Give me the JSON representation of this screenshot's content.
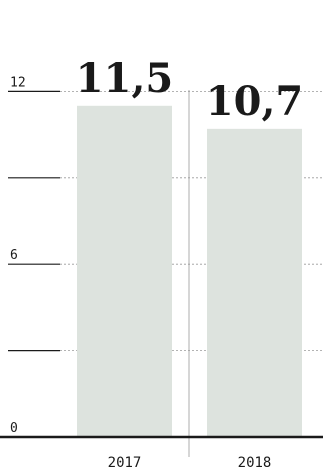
{
  "chart_data": {
    "type": "bar",
    "categories": [
      "2017",
      "2018"
    ],
    "values": [
      11.5,
      10.7
    ],
    "value_labels": [
      "11,5",
      "10,7"
    ],
    "y_ticks": [
      0,
      3,
      6,
      9,
      12
    ],
    "y_tick_labels": [
      "0",
      "",
      "6",
      "",
      "12"
    ],
    "ylim": [
      0,
      12
    ],
    "grid": true,
    "colors": {
      "bar": "#dde3de",
      "axis": "#1a1a1a",
      "grid": "#9a9a9a",
      "text": "#1a1a1a"
    }
  }
}
